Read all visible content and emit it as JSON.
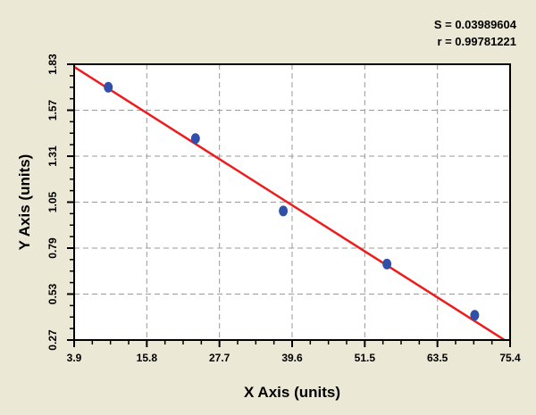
{
  "chart_data": {
    "type": "scatter",
    "title": "",
    "xlabel": "X Axis (units)",
    "ylabel": "Y Axis (units)",
    "xlim": [
      3.9,
      75.4
    ],
    "ylim": [
      0.27,
      1.83
    ],
    "x_ticks": [
      "3.9",
      "15.8",
      "27.7",
      "39.6",
      "51.5",
      "63.5",
      "75.4"
    ],
    "y_ticks": [
      "0.27",
      "0.53",
      "0.79",
      "1.05",
      "1.31",
      "1.57",
      "1.83"
    ],
    "grid": true,
    "points": [
      {
        "x": 9.5,
        "y": 1.7
      },
      {
        "x": 23.8,
        "y": 1.41
      },
      {
        "x": 38.2,
        "y": 1.0
      },
      {
        "x": 55.2,
        "y": 0.7
      },
      {
        "x": 69.6,
        "y": 0.41
      }
    ],
    "fit_line": {
      "x": [
        3.9,
        74.5
      ],
      "y": [
        1.815,
        0.27
      ]
    },
    "stats": {
      "S": "S = 0.03989604",
      "r": "r = 0.99781221"
    },
    "colors": {
      "points": "#2f4fa8",
      "fit_line": "#ee1c1c",
      "background": "#ebe8d6",
      "plot": "#ffffff",
      "grid": "#9a9a9a"
    }
  }
}
